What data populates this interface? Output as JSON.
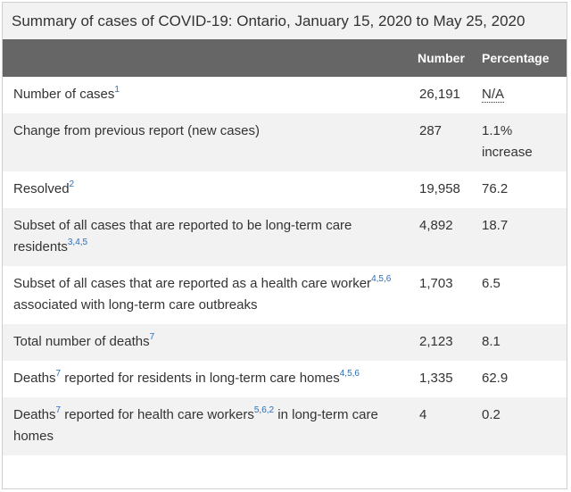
{
  "table": {
    "caption": "Summary of cases of COVID-19: Ontario, January 15, 2020 to May 25, 2020",
    "headers": {
      "label": "",
      "number": "Number",
      "percentage": "Percentage"
    },
    "rows": [
      {
        "label": "Number of cases",
        "sup": "1",
        "label_after": "",
        "number": "26,191",
        "percentage": "N/A"
      },
      {
        "label": "Change from previous report (new cases)",
        "sup": "",
        "label_after": "",
        "number": "287",
        "percentage": "1.1% increase"
      },
      {
        "label": "Resolved",
        "sup": "2",
        "label_after": "",
        "number": "19,958",
        "percentage": "76.2"
      },
      {
        "label": "Subset of all cases that are reported to be long-term care residents",
        "sup": "3,4,5",
        "label_after": "",
        "number": "4,892",
        "percentage": "18.7"
      },
      {
        "label": "Subset of all cases that are reported as a health care worker",
        "sup": "4,5,6",
        "label_after": " associated with long-term care outbreaks",
        "number": "1,703",
        "percentage": "6.5"
      },
      {
        "label": "Total number of deaths",
        "sup": "7",
        "label_after": "",
        "number": "2,123",
        "percentage": "8.1"
      },
      {
        "label": "Deaths",
        "sup": "7",
        "label_after": " reported for residents in long-term care homes",
        "sup2": "4,5,6",
        "number": "1,335",
        "percentage": "62.9"
      },
      {
        "label": "Deaths",
        "sup": "7",
        "label_after": " reported for health care workers",
        "sup2": "5,6,2",
        "label_after2": " in long-term care homes",
        "number": "4",
        "percentage": "0.2"
      }
    ]
  }
}
